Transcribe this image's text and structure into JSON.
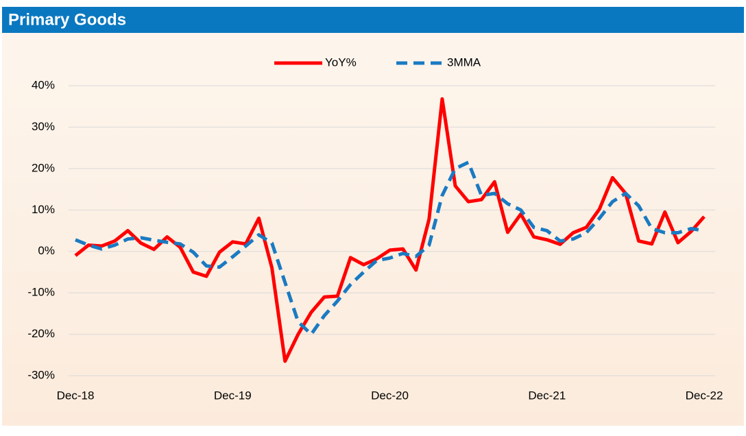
{
  "header": {
    "title": "Primary Goods"
  },
  "chart_data": {
    "type": "line",
    "categories": [
      "Dec-18",
      null,
      null,
      null,
      null,
      null,
      null,
      null,
      null,
      null,
      null,
      null,
      "Dec-19",
      null,
      null,
      null,
      null,
      null,
      null,
      null,
      null,
      null,
      null,
      null,
      "Dec-20",
      null,
      null,
      null,
      null,
      null,
      null,
      null,
      null,
      null,
      null,
      null,
      "Dec-21",
      null,
      null,
      null,
      null,
      null,
      null,
      null,
      null,
      null,
      null,
      null,
      "Dec-22"
    ],
    "series": [
      {
        "name": "YoY%",
        "color": "#ff0000",
        "style": "solid",
        "values": [
          -1,
          1.5,
          1.3,
          2.5,
          5,
          2,
          0.5,
          3.5,
          1,
          -5,
          -6,
          -0.2,
          2.3,
          1.8,
          8,
          -4,
          -26.5,
          -20,
          -14.7,
          -11,
          -10.8,
          -1.5,
          -3.2,
          -1.8,
          0.3,
          0.6,
          -4.5,
          7.8,
          36.8,
          15.8,
          12,
          12.5,
          16.8,
          4.6,
          9,
          3.5,
          2.8,
          1.7,
          4.5,
          5.8,
          10.2,
          17.8,
          14,
          2.5,
          1.8,
          9.5,
          2.1,
          4.8,
          8.4
        ]
      },
      {
        "name": "3MMA",
        "color": "#1a7ac2",
        "style": "dashed",
        "values": [
          2.8,
          1.5,
          0.6,
          1.5,
          3,
          3.3,
          2.7,
          2.2,
          1.8,
          -0.2,
          -3.5,
          -3.8,
          -1.3,
          1.3,
          4,
          2,
          -7.5,
          -17,
          -20,
          -15.5,
          -12,
          -8,
          -5,
          -2.2,
          -1.6,
          -0.5,
          -1.2,
          1.5,
          13.5,
          20,
          21.5,
          13.5,
          14,
          11.5,
          10,
          5.8,
          5,
          2.5,
          3,
          4.5,
          8,
          12,
          14,
          11,
          5.5,
          4.5,
          4.5,
          5.5,
          5
        ]
      }
    ],
    "ylim": [
      -30,
      40
    ],
    "yticks": [
      {
        "value": -30,
        "label": "-30%"
      },
      {
        "value": -20,
        "label": "-20%"
      },
      {
        "value": -10,
        "label": "-10%"
      },
      {
        "value": 0,
        "label": "0%"
      },
      {
        "value": 10,
        "label": "10%"
      },
      {
        "value": 20,
        "label": "20%"
      },
      {
        "value": 30,
        "label": "30%"
      },
      {
        "value": 40,
        "label": "40%"
      }
    ],
    "grid": true,
    "legend": "top"
  }
}
